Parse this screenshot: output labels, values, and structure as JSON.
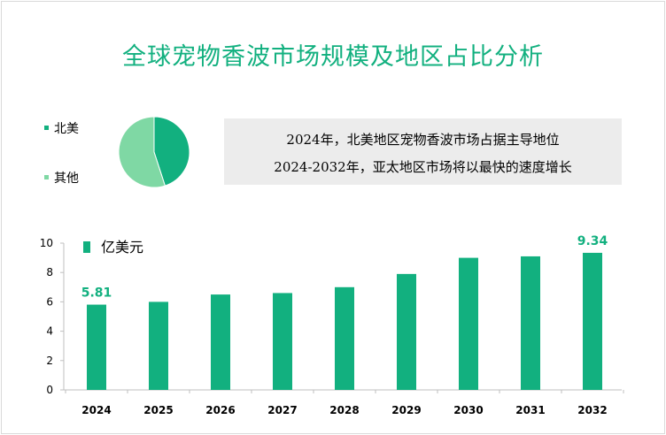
{
  "title": "全球宠物香波市场规模及地区占比分析",
  "colors": {
    "accent": "#12b07f",
    "north_america": "#12b07f",
    "other": "#7fd8a4",
    "note_bg": "#ececec"
  },
  "notes": [
    "2024年，北美地区宠物香波市场占据主导地位",
    "2024-2032年，亚太地区市场将以最快的速度增长"
  ],
  "chart_data": [
    {
      "type": "pie",
      "labels": [
        "北美",
        "其他"
      ],
      "values": [
        45,
        55
      ],
      "colors": [
        "#12b07f",
        "#7fd8a4"
      ],
      "legend": "left"
    },
    {
      "type": "bar",
      "categories": [
        "2024",
        "2025",
        "2026",
        "2027",
        "2028",
        "2029",
        "2030",
        "2031",
        "2032"
      ],
      "series": [
        {
          "name": "亿美元",
          "values": [
            5.81,
            6.0,
            6.5,
            6.6,
            7.0,
            7.9,
            9.0,
            9.1,
            9.34
          ]
        }
      ],
      "data_labels": [
        {
          "category": "2024",
          "label": "5.81"
        },
        {
          "category": "2032",
          "label": "9.34"
        }
      ],
      "yticks": [
        "0",
        "2",
        "4",
        "6",
        "8",
        "10"
      ],
      "ylim": [
        0,
        10
      ],
      "grid": false,
      "legend": "top-left",
      "color": "#12b07f"
    }
  ]
}
